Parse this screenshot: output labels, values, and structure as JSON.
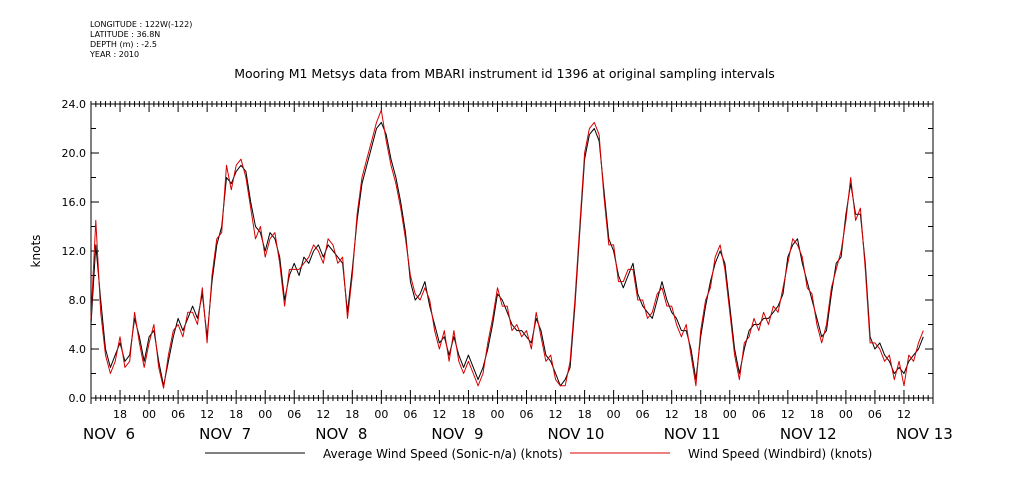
{
  "header": {
    "longitude": "LONGITUDE : 122W(-122)",
    "latitude": "LATITUDE : 36.8N",
    "depth": "DEPTH (m) : -2.5",
    "year": "YEAR : 2010"
  },
  "chart_data": {
    "type": "line",
    "title": "Mooring M1 Metsys data from MBARI instrument id 1396 at original sampling intervals",
    "xlabel": "",
    "ylabel": "knots",
    "ylim": [
      0,
      24
    ],
    "xlim_hours": [
      0,
      174
    ],
    "y_ticks": [
      "0.0",
      "4.0",
      "8.0",
      "12.0",
      "16.0",
      "20.0",
      "24.0"
    ],
    "hour_tick_labels": [
      {
        "h": 6,
        "label": "18"
      },
      {
        "h": 12,
        "label": "00"
      },
      {
        "h": 18,
        "label": "06"
      },
      {
        "h": 24,
        "label": "12"
      },
      {
        "h": 30,
        "label": "18"
      },
      {
        "h": 36,
        "label": "00"
      },
      {
        "h": 42,
        "label": "06"
      },
      {
        "h": 48,
        "label": "12"
      },
      {
        "h": 54,
        "label": "18"
      },
      {
        "h": 60,
        "label": "00"
      },
      {
        "h": 66,
        "label": "06"
      },
      {
        "h": 72,
        "label": "12"
      },
      {
        "h": 78,
        "label": "18"
      },
      {
        "h": 84,
        "label": "00"
      },
      {
        "h": 90,
        "label": "06"
      },
      {
        "h": 96,
        "label": "12"
      },
      {
        "h": 102,
        "label": "18"
      },
      {
        "h": 108,
        "label": "00"
      },
      {
        "h": 114,
        "label": "06"
      },
      {
        "h": 120,
        "label": "12"
      },
      {
        "h": 126,
        "label": "18"
      },
      {
        "h": 132,
        "label": "00"
      },
      {
        "h": 138,
        "label": "06"
      },
      {
        "h": 144,
        "label": "12"
      },
      {
        "h": 150,
        "label": "18"
      },
      {
        "h": 156,
        "label": "00"
      },
      {
        "h": 162,
        "label": "06"
      },
      {
        "h": 168,
        "label": "12"
      }
    ],
    "date_labels": [
      {
        "h": 0,
        "label": "NOV  6"
      },
      {
        "h": 24,
        "label": "NOV  7"
      },
      {
        "h": 48,
        "label": "NOV  8"
      },
      {
        "h": 72,
        "label": "NOV  9"
      },
      {
        "h": 96,
        "label": "NOV 10"
      },
      {
        "h": 120,
        "label": "NOV 11"
      },
      {
        "h": 144,
        "label": "NOV 12"
      },
      {
        "h": 168,
        "label": "NOV 13"
      }
    ],
    "x_hours": [
      0,
      1,
      2,
      3,
      4,
      5,
      6,
      7,
      8,
      9,
      10,
      11,
      12,
      13,
      14,
      15,
      16,
      17,
      18,
      19,
      20,
      21,
      22,
      23,
      24,
      25,
      26,
      27,
      28,
      29,
      30,
      31,
      32,
      33,
      34,
      35,
      36,
      37,
      38,
      39,
      40,
      41,
      42,
      43,
      44,
      45,
      46,
      47,
      48,
      49,
      50,
      51,
      52,
      53,
      54,
      55,
      56,
      57,
      58,
      59,
      60,
      61,
      62,
      63,
      64,
      65,
      66,
      67,
      68,
      69,
      70,
      71,
      72,
      73,
      74,
      75,
      76,
      77,
      78,
      79,
      80,
      81,
      82,
      83,
      84,
      85,
      86,
      87,
      88,
      89,
      90,
      91,
      92,
      93,
      94,
      95,
      96,
      97,
      98,
      99,
      100,
      101,
      102,
      103,
      104,
      105,
      106,
      107,
      108,
      109,
      110,
      111,
      112,
      113,
      114,
      115,
      116,
      117,
      118,
      119,
      120,
      121,
      122,
      123,
      124,
      125,
      126,
      127,
      128,
      129,
      130,
      131,
      132,
      133,
      134,
      135,
      136,
      137,
      138,
      139,
      140,
      141,
      142,
      143,
      144,
      145,
      146,
      147,
      148,
      149,
      150,
      151,
      152,
      153,
      154,
      155,
      156,
      157,
      158,
      159,
      160,
      161,
      162,
      163,
      164,
      165,
      166,
      167,
      168,
      169,
      170,
      171,
      172,
      173,
      174
    ],
    "series": [
      {
        "name": "Average Wind Speed (Sonic-n/a) (knots)",
        "color": "#000000",
        "values": [
          6.0,
          12.5,
          8.0,
          4.0,
          2.5,
          3.5,
          4.5,
          3.0,
          3.5,
          6.5,
          5.0,
          3.0,
          5.0,
          5.5,
          3.0,
          1.0,
          3.0,
          5.0,
          6.5,
          5.5,
          6.5,
          7.5,
          6.5,
          8.5,
          5.0,
          9.5,
          12.5,
          14.0,
          18.0,
          17.5,
          18.5,
          19.0,
          18.5,
          16.0,
          14.0,
          13.5,
          12.0,
          13.5,
          13.0,
          11.5,
          8.0,
          10.0,
          11.0,
          10.0,
          11.5,
          11.0,
          12.0,
          12.5,
          11.5,
          12.5,
          12.0,
          11.5,
          11.0,
          7.0,
          10.5,
          14.5,
          17.5,
          19.0,
          20.5,
          22.0,
          22.5,
          21.5,
          19.5,
          18.0,
          16.0,
          13.5,
          9.5,
          8.0,
          8.5,
          9.5,
          7.5,
          6.0,
          4.5,
          5.0,
          3.5,
          5.0,
          3.5,
          2.5,
          3.5,
          2.5,
          1.5,
          2.5,
          4.0,
          6.0,
          8.5,
          8.0,
          7.0,
          6.0,
          5.5,
          5.5,
          5.0,
          4.5,
          6.5,
          5.5,
          3.5,
          3.0,
          2.0,
          1.0,
          1.5,
          2.5,
          7.5,
          13.5,
          19.5,
          21.5,
          22.0,
          21.0,
          17.0,
          13.0,
          12.0,
          10.0,
          9.0,
          10.0,
          11.0,
          8.5,
          7.5,
          7.0,
          6.5,
          8.0,
          9.5,
          8.0,
          7.0,
          6.5,
          5.5,
          5.5,
          4.0,
          1.5,
          5.0,
          7.5,
          9.5,
          11.0,
          12.0,
          11.0,
          7.5,
          4.0,
          2.0,
          4.0,
          5.5,
          6.0,
          6.0,
          6.5,
          6.5,
          7.0,
          7.5,
          8.5,
          11.5,
          12.5,
          13.0,
          11.0,
          9.5,
          8.0,
          6.5,
          5.0,
          5.5,
          8.5,
          11.0,
          11.5,
          15.0,
          17.5,
          15.0,
          15.0,
          11.0,
          5.0,
          4.0,
          4.5,
          3.5,
          3.0,
          2.0,
          2.5,
          2.0,
          3.0,
          3.5,
          4.0,
          5.0
        ]
      },
      {
        "name": "Wind Speed (Windbird) (knots)",
        "color": "#d40000",
        "values": [
          6.5,
          14.5,
          7.0,
          3.5,
          2.0,
          3.0,
          5.0,
          2.5,
          3.0,
          7.0,
          4.5,
          2.5,
          4.5,
          6.0,
          2.5,
          0.8,
          3.5,
          5.5,
          6.0,
          5.0,
          7.0,
          7.0,
          6.0,
          9.0,
          4.5,
          10.0,
          13.0,
          13.5,
          19.0,
          17.0,
          19.0,
          19.5,
          18.0,
          15.5,
          13.0,
          14.0,
          11.5,
          13.0,
          13.5,
          11.0,
          7.5,
          10.5,
          10.5,
          10.5,
          11.0,
          11.5,
          12.5,
          12.0,
          11.0,
          13.0,
          12.5,
          11.0,
          11.5,
          6.5,
          10.0,
          15.0,
          18.0,
          19.5,
          21.0,
          22.5,
          23.5,
          21.0,
          19.0,
          17.5,
          15.5,
          13.0,
          10.0,
          8.5,
          8.0,
          9.0,
          8.0,
          5.5,
          4.0,
          5.5,
          3.0,
          5.5,
          3.0,
          2.0,
          3.0,
          2.0,
          1.0,
          2.0,
          4.5,
          6.5,
          9.0,
          7.5,
          7.5,
          5.5,
          6.0,
          5.0,
          5.5,
          4.0,
          7.0,
          5.0,
          3.0,
          3.5,
          1.5,
          1.0,
          1.0,
          3.0,
          8.0,
          14.0,
          20.0,
          22.0,
          22.5,
          21.5,
          16.5,
          12.5,
          12.5,
          9.5,
          9.5,
          10.5,
          10.5,
          8.0,
          8.0,
          6.5,
          7.0,
          8.5,
          9.0,
          7.5,
          7.5,
          6.0,
          5.0,
          6.0,
          3.5,
          1.0,
          5.5,
          8.0,
          9.0,
          11.5,
          12.5,
          10.5,
          7.0,
          3.5,
          1.5,
          4.5,
          5.0,
          6.5,
          5.5,
          7.0,
          6.0,
          7.5,
          7.0,
          9.0,
          11.0,
          13.0,
          12.5,
          11.5,
          9.0,
          8.5,
          6.0,
          4.5,
          6.0,
          9.0,
          10.5,
          12.0,
          14.5,
          18.0,
          14.5,
          15.5,
          10.5,
          4.5,
          4.5,
          4.0,
          3.0,
          3.5,
          1.5,
          3.0,
          1.0,
          3.5,
          3.0,
          4.5,
          5.5
        ]
      }
    ],
    "legend_placement": "bottom",
    "grid": false
  }
}
